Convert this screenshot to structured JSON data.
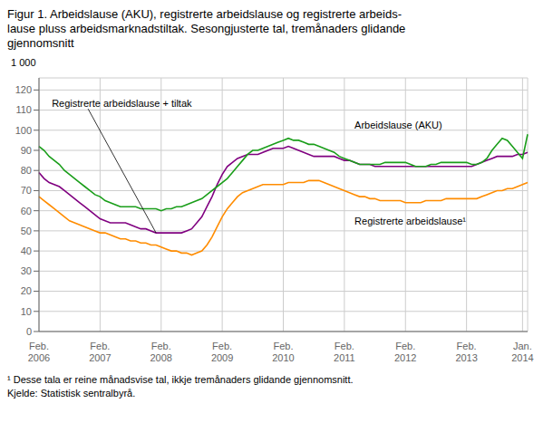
{
  "chart_data": {
    "type": "line",
    "title": "Figur 1. Arbeidslause (AKU), registrerte arbeidslause og registrerte arbeids-\nlause pluss arbeidsmarknadstiltak. Sesongjusterte tal, tremånaders glidande\ngjennomsnitt",
    "y_label": "1 000",
    "footnote": "¹ Desse tala er reine månadsvise tal, ikkje tremånaders glidande gjennomsnitt.",
    "source": "Kjelde: Statistisk sentralbyrå.",
    "grid": true,
    "ylim": [
      0,
      126
    ],
    "yticks": [
      0,
      10,
      20,
      30,
      40,
      50,
      60,
      70,
      80,
      90,
      100,
      110,
      120
    ],
    "categories": [
      "Feb.\n2006",
      null,
      null,
      null,
      null,
      null,
      null,
      null,
      null,
      null,
      null,
      null,
      "Feb.\n2007",
      null,
      null,
      null,
      null,
      null,
      null,
      null,
      null,
      null,
      null,
      null,
      "Feb.\n2008",
      null,
      null,
      null,
      null,
      null,
      null,
      null,
      null,
      null,
      null,
      null,
      "Feb.\n2009",
      null,
      null,
      null,
      null,
      null,
      null,
      null,
      null,
      null,
      null,
      null,
      "Feb.\n2010",
      null,
      null,
      null,
      null,
      null,
      null,
      null,
      null,
      null,
      null,
      null,
      "Feb.\n2011",
      null,
      null,
      null,
      null,
      null,
      null,
      null,
      null,
      null,
      null,
      null,
      "Feb.\n2012",
      null,
      null,
      null,
      null,
      null,
      null,
      null,
      null,
      null,
      null,
      null,
      "Feb.\n2013",
      null,
      null,
      null,
      null,
      null,
      null,
      null,
      null,
      null,
      null,
      "Jan.\n2014",
      null
    ],
    "series": [
      {
        "name": "Registrerte arbeidslause + tiltak",
        "color": "#800080",
        "values": [
          79,
          76,
          74,
          73,
          72,
          70,
          68,
          66,
          64,
          62,
          60,
          58,
          56,
          55,
          54,
          54,
          54,
          54,
          53,
          52,
          51,
          51,
          50,
          49,
          49,
          49,
          49,
          49,
          49,
          50,
          51,
          54,
          57,
          62,
          67,
          73,
          78,
          82,
          84,
          86,
          87,
          88,
          88,
          88,
          89,
          90,
          91,
          91,
          91,
          92,
          91,
          90,
          89,
          88,
          87,
          87,
          87,
          87,
          87,
          86,
          85,
          85,
          84,
          83,
          83,
          83,
          82,
          82,
          82,
          82,
          82,
          82,
          82,
          82,
          82,
          82,
          82,
          82,
          82,
          82,
          82,
          82,
          82,
          82,
          82,
          82,
          83,
          84,
          85,
          86,
          87,
          87,
          87,
          87,
          88,
          88,
          89
        ]
      },
      {
        "name": "Registrerte arbeidslause¹",
        "color": "#ff8c00",
        "values": [
          67,
          65,
          63,
          61,
          59,
          57,
          55,
          54,
          53,
          52,
          51,
          50,
          49,
          49,
          48,
          47,
          46,
          46,
          45,
          45,
          44,
          44,
          43,
          43,
          42,
          41,
          40,
          40,
          39,
          39,
          38,
          39,
          40,
          43,
          47,
          52,
          57,
          61,
          64,
          67,
          69,
          70,
          71,
          72,
          73,
          73,
          73,
          73,
          73,
          74,
          74,
          74,
          74,
          75,
          75,
          75,
          74,
          73,
          72,
          71,
          70,
          69,
          68,
          67,
          67,
          66,
          66,
          65,
          65,
          65,
          65,
          65,
          64,
          64,
          64,
          64,
          65,
          65,
          65,
          65,
          66,
          66,
          66,
          66,
          66,
          66,
          66,
          67,
          68,
          69,
          70,
          70,
          71,
          71,
          72,
          73,
          74
        ]
      },
      {
        "name": "Arbeidslause (AKU)",
        "color": "#1a9e1a",
        "values": [
          92,
          90,
          87,
          85,
          83,
          80,
          78,
          76,
          74,
          72,
          70,
          68,
          67,
          65,
          64,
          63,
          62,
          62,
          62,
          62,
          61,
          61,
          61,
          61,
          60,
          61,
          61,
          62,
          62,
          63,
          64,
          65,
          66,
          68,
          70,
          72,
          74,
          76,
          79,
          82,
          85,
          88,
          90,
          90,
          91,
          92,
          93,
          94,
          95,
          96,
          95,
          95,
          94,
          93,
          93,
          92,
          91,
          90,
          89,
          87,
          86,
          85,
          84,
          83,
          83,
          83,
          83,
          83,
          84,
          84,
          84,
          84,
          84,
          83,
          82,
          82,
          82,
          83,
          83,
          84,
          84,
          84,
          84,
          84,
          84,
          83,
          83,
          84,
          86,
          90,
          93,
          96,
          95,
          92,
          89,
          86,
          98
        ]
      }
    ]
  }
}
